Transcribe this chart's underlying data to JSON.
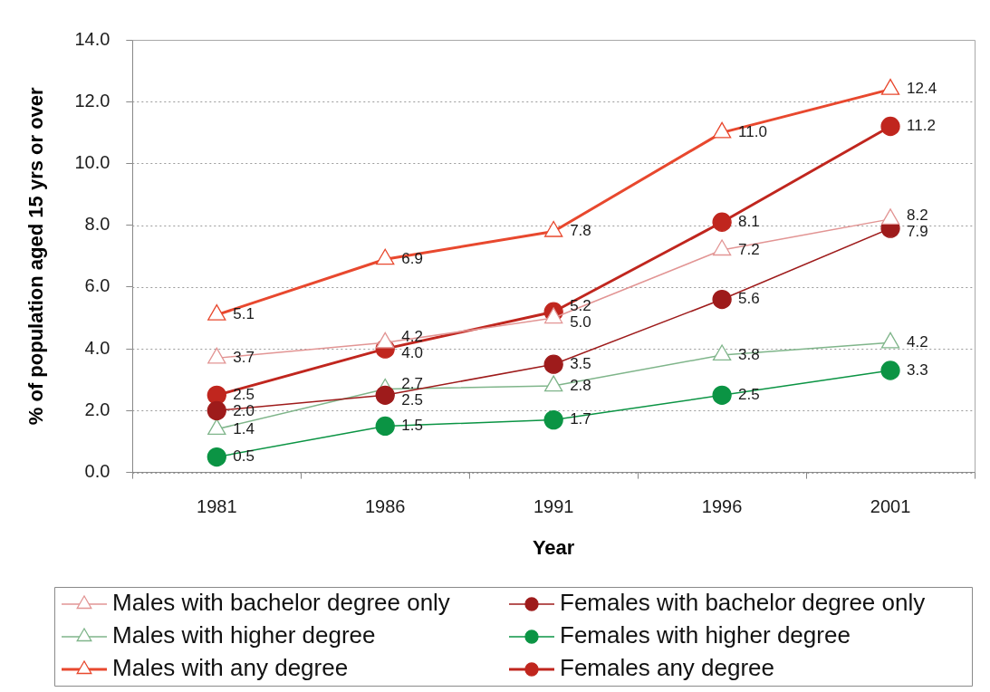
{
  "chart_data": {
    "type": "line",
    "xlabel": "Year",
    "ylabel": "% of population aged 15 yrs or over",
    "categories": [
      "1981",
      "1986",
      "1991",
      "1996",
      "2001"
    ],
    "series": [
      {
        "name": "Males with bachelor degree only",
        "color": "#e29594",
        "marker": "triangle",
        "values": [
          3.7,
          4.2,
          5.0,
          7.2,
          8.2
        ],
        "value_labels": [
          "3.7",
          "4.2",
          "5.0",
          "7.2",
          "8.2"
        ]
      },
      {
        "name": "Females with bachelor degree only",
        "color": "#9e1b1b",
        "marker": "circle",
        "values": [
          2.0,
          2.5,
          3.5,
          5.6,
          7.9
        ],
        "value_labels": [
          "2.0",
          "2.5",
          "3.5",
          "5.6",
          "7.9"
        ]
      },
      {
        "name": "Males with higher degree",
        "color": "#7fb58a",
        "marker": "triangle",
        "values": [
          1.4,
          2.7,
          2.8,
          3.8,
          4.2
        ],
        "value_labels": [
          "1.4",
          "2.7",
          "2.8",
          "3.8",
          "4.2"
        ]
      },
      {
        "name": "Females with higher degree",
        "color": "#0b9444",
        "marker": "circle",
        "values": [
          0.5,
          1.5,
          1.7,
          2.5,
          3.3
        ],
        "value_labels": [
          "0.5",
          "1.5",
          "1.7",
          "2.5",
          "3.3"
        ]
      },
      {
        "name": "Males with any degree",
        "color": "#e8482e",
        "marker": "triangle",
        "values": [
          5.1,
          6.9,
          7.8,
          11.0,
          12.4
        ],
        "value_labels": [
          "5.1",
          "6.9",
          "7.8",
          "11.0",
          "12.4"
        ]
      },
      {
        "name": "Females any degree",
        "color": "#c0261e",
        "marker": "circle",
        "values": [
          2.5,
          4.0,
          5.2,
          8.1,
          11.2
        ],
        "value_labels": [
          "2.5",
          "4.0",
          "5.2",
          "8.1",
          "11.2"
        ]
      }
    ],
    "ylim": [
      0,
      14
    ],
    "yticks": [
      {
        "value": 0,
        "label": "0.0"
      },
      {
        "value": 2,
        "label": "2.0"
      },
      {
        "value": 4,
        "label": "4.0"
      },
      {
        "value": 6,
        "label": "6.0"
      },
      {
        "value": 8,
        "label": "8.0"
      },
      {
        "value": 10,
        "label": "10.0"
      },
      {
        "value": 12,
        "label": "12.0"
      },
      {
        "value": 14,
        "label": "14.0"
      }
    ],
    "grid": "y",
    "legend": "bottom",
    "line_style": "solid"
  }
}
